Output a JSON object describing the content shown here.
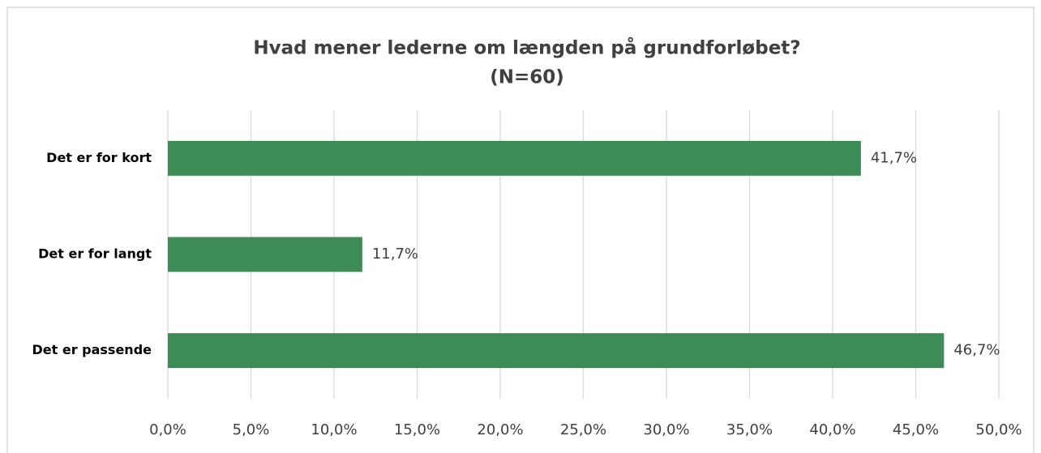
{
  "chart_data": {
    "type": "bar",
    "orientation": "horizontal",
    "title": "Hvad mener lederne om længden på grundforløbet?",
    "subtitle": "(N=60)",
    "categories": [
      "Det er for kort",
      "Det er for langt",
      "Det er passende"
    ],
    "values": [
      41.7,
      11.7,
      46.7
    ],
    "value_labels": [
      "41,7%",
      "11,7%",
      "46,7%"
    ],
    "color": "#3d8b55",
    "xlim": [
      0,
      50
    ],
    "xticks": [
      {
        "value": 0,
        "label": "0,0%"
      },
      {
        "value": 5,
        "label": "5,0%"
      },
      {
        "value": 10,
        "label": "10,0%"
      },
      {
        "value": 15,
        "label": "15,0%"
      },
      {
        "value": 20,
        "label": "20,0%"
      },
      {
        "value": 25,
        "label": "25,0%"
      },
      {
        "value": 30,
        "label": "30,0%"
      },
      {
        "value": 35,
        "label": "35,0%"
      },
      {
        "value": 40,
        "label": "40,0%"
      },
      {
        "value": 45,
        "label": "45,0%"
      },
      {
        "value": 50,
        "label": "50,0%"
      }
    ],
    "grid": true
  }
}
